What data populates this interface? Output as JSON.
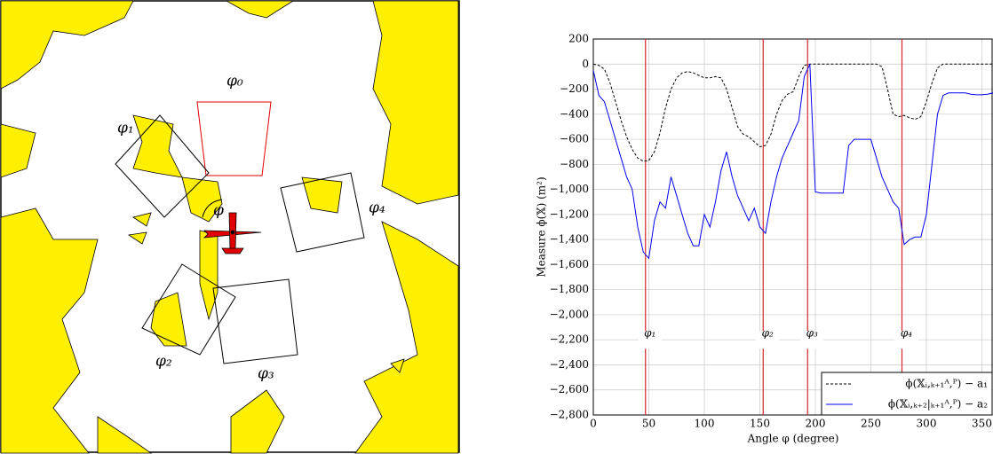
{
  "map": {
    "labels": [
      "φ₀",
      "φ₁",
      "φ₂",
      "φ₃",
      "φ₄",
      "φ"
    ]
  },
  "chart_data": {
    "type": "line",
    "xlabel": "Angle φ (degree)",
    "ylabel": "Measure ϕ(𝕏) (m²)",
    "xlim": [
      0,
      360
    ],
    "ylim": [
      -2800,
      200
    ],
    "xticks": [
      0,
      50,
      100,
      150,
      200,
      250,
      300,
      350
    ],
    "yticks": [
      200,
      0,
      {
        "value": -200,
        "label": "−200"
      },
      {
        "value": -400,
        "label": "−400"
      },
      {
        "value": -600,
        "label": "−600"
      },
      {
        "value": -800,
        "label": "−800"
      },
      {
        "value": -1000,
        "label": "−1,000"
      },
      {
        "value": -1200,
        "label": "−1,200"
      },
      {
        "value": -1400,
        "label": "−1,400"
      },
      {
        "value": -1600,
        "label": "−1,600"
      },
      {
        "value": -1800,
        "label": "−1,800"
      },
      {
        "value": -2000,
        "label": "−2,000"
      },
      {
        "value": -2200,
        "label": "−2,200"
      },
      {
        "value": -2400,
        "label": "−2,400"
      },
      {
        "value": -2600,
        "label": "−2,600"
      },
      {
        "value": -2800,
        "label": "−2,800"
      }
    ],
    "grid": true,
    "legend": "lower right",
    "vlines": [
      {
        "x": 47,
        "label": "φ₁",
        "color": "#d62728"
      },
      {
        "x": 153,
        "label": "φ₂",
        "color": "#d62728"
      },
      {
        "x": 193,
        "label": "φ₃",
        "color": "#d62728"
      },
      {
        "x": 278,
        "label": "φ₄",
        "color": "#d62728"
      }
    ],
    "x": [
      0,
      5,
      10,
      15,
      20,
      25,
      30,
      35,
      40,
      45,
      50,
      55,
      60,
      65,
      70,
      75,
      80,
      85,
      90,
      95,
      100,
      105,
      110,
      115,
      120,
      125,
      130,
      135,
      140,
      145,
      150,
      155,
      160,
      165,
      170,
      175,
      180,
      185,
      190,
      195,
      200,
      205,
      210,
      215,
      220,
      225,
      230,
      235,
      240,
      245,
      250,
      255,
      260,
      265,
      270,
      275,
      280,
      285,
      290,
      295,
      300,
      305,
      310,
      315,
      320,
      325,
      330,
      335,
      340,
      345,
      350,
      355,
      360
    ],
    "series": [
      {
        "name": "ϕ(𝕏ᵢ,ₖ₊₁ᴬ,ᴾ) − a₁",
        "color": "#000000",
        "dashed": true,
        "values": [
          0,
          -10,
          -40,
          -150,
          -300,
          -450,
          -580,
          -680,
          -750,
          -775,
          -770,
          -700,
          -550,
          -350,
          -200,
          -110,
          -70,
          -60,
          -70,
          -90,
          -110,
          -110,
          -100,
          -110,
          -200,
          -350,
          -500,
          -560,
          -580,
          -620,
          -660,
          -650,
          -560,
          -400,
          -290,
          -240,
          -220,
          -100,
          -10,
          0,
          0,
          0,
          0,
          0,
          0,
          0,
          0,
          0,
          0,
          0,
          0,
          0,
          -20,
          -200,
          -400,
          -420,
          -410,
          -430,
          -440,
          -420,
          -300,
          -150,
          -30,
          0,
          0,
          0,
          0,
          0,
          0,
          0,
          0,
          0,
          0
        ]
      },
      {
        "name": "ϕ(𝕏ᵢ,ₖ₊₂|ₖ₊₁ᴬ,ᴾ) − a₂",
        "color": "#0000ee",
        "dashed": false,
        "values": [
          -50,
          -250,
          -300,
          -450,
          -600,
          -750,
          -900,
          -1000,
          -1300,
          -1500,
          -1550,
          -1250,
          -1100,
          -1150,
          -900,
          -1050,
          -1200,
          -1350,
          -1450,
          -1450,
          -1200,
          -1300,
          -1100,
          -850,
          -700,
          -900,
          -1050,
          -1150,
          -1250,
          -1150,
          -1300,
          -1350,
          -1100,
          -900,
          -750,
          -650,
          -550,
          -450,
          -100,
          0,
          -1020,
          -1030,
          -1030,
          -1030,
          -1030,
          -1030,
          -650,
          -600,
          -600,
          -600,
          -600,
          -750,
          -900,
          -1000,
          -1100,
          -1150,
          -1440,
          -1400,
          -1380,
          -1380,
          -1200,
          -800,
          -400,
          -250,
          -230,
          -230,
          -230,
          -230,
          -240,
          -245,
          -245,
          -240,
          -230
        ]
      }
    ]
  }
}
